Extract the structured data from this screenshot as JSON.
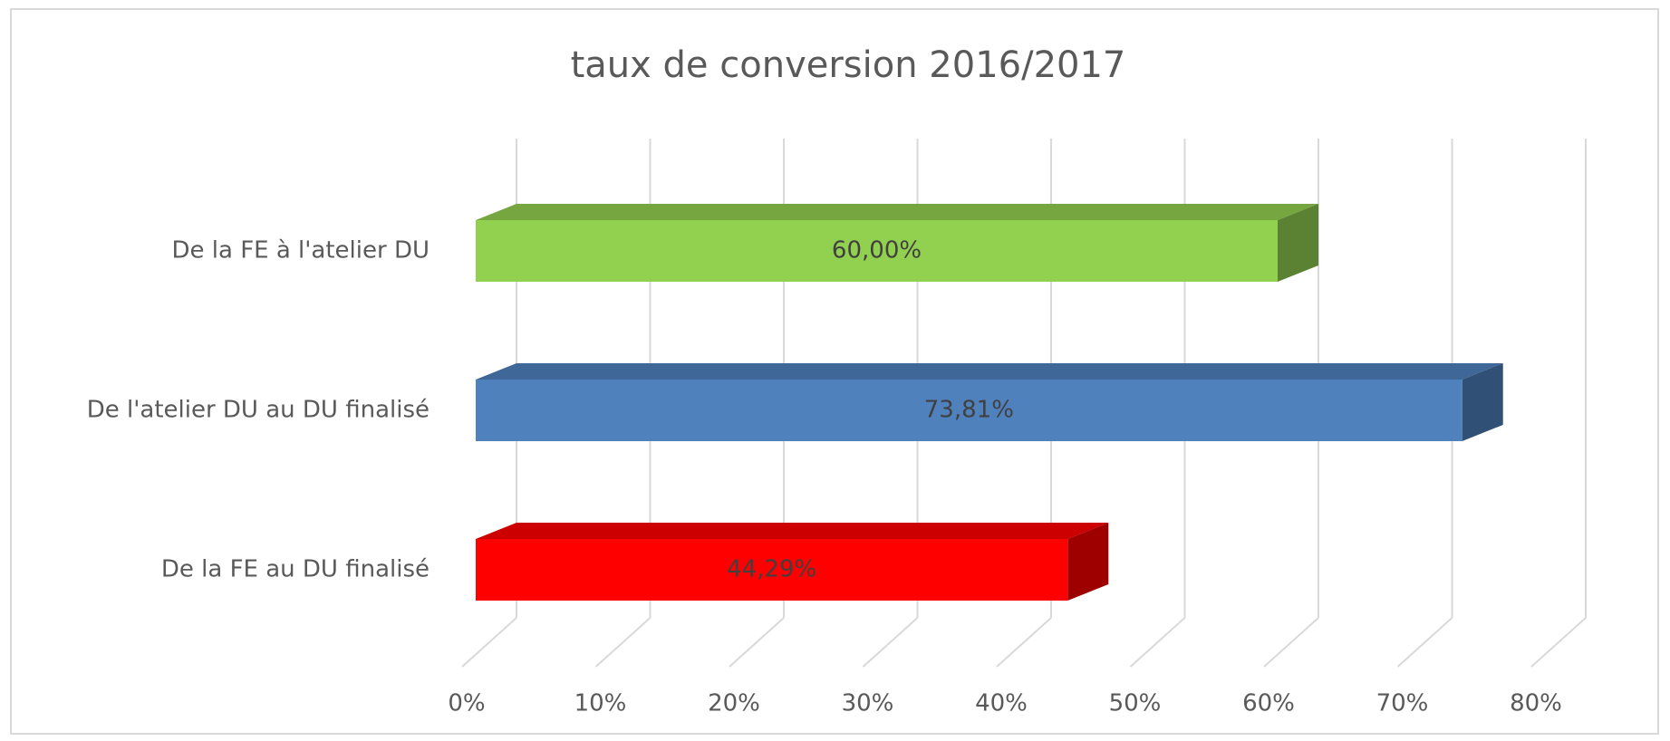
{
  "chart_data": {
    "type": "bar3d",
    "orientation": "horizontal",
    "title": "taux de conversion 2016/2017",
    "categories": [
      "De la FE à l'atelier DU",
      "De l'atelier DU au DU finalisé",
      "De la FE au DU finalisé"
    ],
    "values": [
      60,
      73.81,
      44.29
    ],
    "value_labels": [
      "60,00%",
      "73,81%",
      "44,29%"
    ],
    "colors": [
      "#92d050",
      "#4f81bd",
      "#ff0000"
    ],
    "xlim": [
      0,
      80
    ],
    "xticks": [
      {
        "value": 0,
        "label": "0%"
      },
      {
        "value": 10,
        "label": "10%"
      },
      {
        "value": 20,
        "label": "20%"
      },
      {
        "value": 30,
        "label": "30%"
      },
      {
        "value": 40,
        "label": "40%"
      },
      {
        "value": 50,
        "label": "50%"
      },
      {
        "value": 60,
        "label": "60%"
      },
      {
        "value": 70,
        "label": "70%"
      },
      {
        "value": 80,
        "label": "80%"
      }
    ],
    "grid": true
  }
}
